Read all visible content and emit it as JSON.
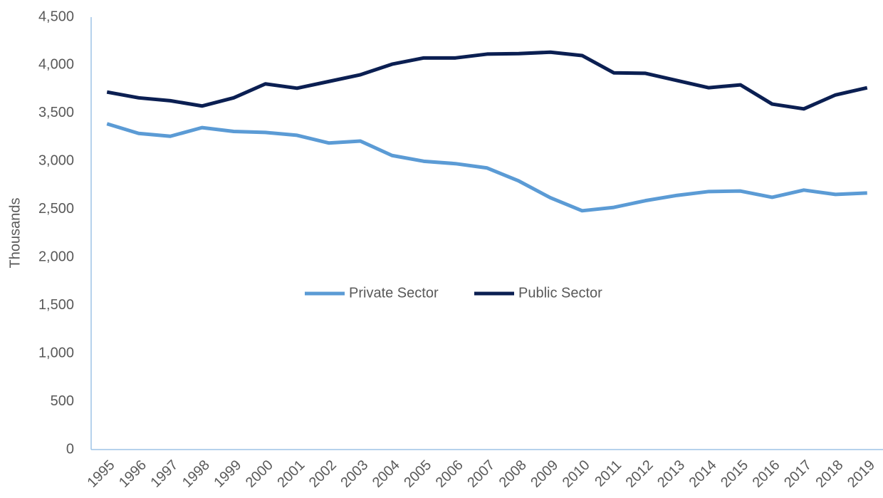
{
  "chart_data": {
    "type": "line",
    "y_label": "Thousands",
    "categories": [
      "1995",
      "1996",
      "1997",
      "1998",
      "1999",
      "2000",
      "2001",
      "2002",
      "2003",
      "2004",
      "2005",
      "2006",
      "2007",
      "2008",
      "2009",
      "2010",
      "2011",
      "2012",
      "2013",
      "2014",
      "2015",
      "2016",
      "2017",
      "2018",
      "2019"
    ],
    "series": [
      {
        "name": "Private Sector",
        "color": "#5b9bd5",
        "values": [
          3390,
          3290,
          3260,
          3350,
          3310,
          3300,
          3270,
          3190,
          3210,
          3060,
          3000,
          2975,
          2930,
          2795,
          2620,
          2485,
          2520,
          2590,
          2645,
          2685,
          2690,
          2625,
          2700,
          2655,
          2670
        ]
      },
      {
        "name": "Public Sector",
        "color": "#0b1f52",
        "values": [
          3720,
          3660,
          3630,
          3575,
          3660,
          3805,
          3760,
          3830,
          3900,
          4010,
          4075,
          4075,
          4115,
          4120,
          4135,
          4100,
          3920,
          3915,
          3840,
          3765,
          3795,
          3595,
          3545,
          3690,
          3765
        ]
      }
    ],
    "ylim": [
      0,
      4500
    ],
    "yticks": [
      0,
      500,
      {
        "value": 1000,
        "label": "1,000"
      },
      {
        "value": 1500,
        "label": "1,500"
      },
      {
        "value": 2000,
        "label": "2,000"
      },
      {
        "value": 2500,
        "label": "2,500"
      },
      {
        "value": 3000,
        "label": "3,000"
      },
      {
        "value": 3500,
        "label": "3,500"
      },
      {
        "value": 4000,
        "label": "4,000"
      },
      {
        "value": 4500,
        "label": "4,500"
      }
    ],
    "grid": false,
    "legend": "center"
  }
}
